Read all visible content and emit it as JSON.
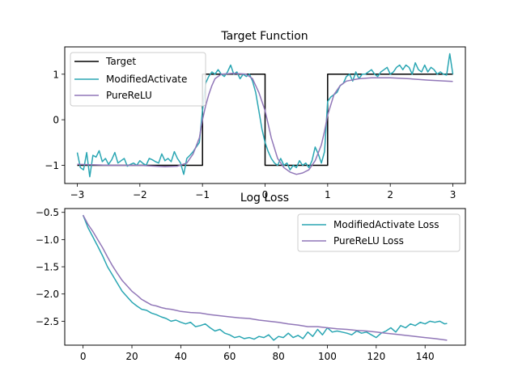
{
  "colors": {
    "target": "#000000",
    "modified": "#2aa6b3",
    "pure": "#9177b8"
  },
  "chart_data": [
    {
      "type": "line",
      "title": "Target Function",
      "xlabel": "",
      "ylabel": "",
      "xlim": [
        -3.2,
        3.2
      ],
      "ylim": [
        -1.4,
        1.6
      ],
      "xticks": [
        -3,
        -2,
        -1,
        0,
        1,
        2,
        3
      ],
      "xtick_labels": [
        "−3",
        "−2",
        "−1",
        "0",
        "1",
        "2",
        "3"
      ],
      "yticks": [
        1,
        0,
        -1
      ],
      "ytick_labels": [
        "1",
        "0",
        "−1"
      ],
      "legend_location": "upper-left",
      "series": [
        {
          "name": "Target",
          "color_key": "target",
          "x": [
            -3,
            -1,
            -1,
            0,
            0,
            1,
            1,
            3
          ],
          "y": [
            -1,
            -1,
            1,
            1,
            -1,
            -1,
            1,
            1
          ]
        },
        {
          "name": "ModifiedActivate",
          "color_key": "modified",
          "x": [
            -3.0,
            -2.95,
            -2.9,
            -2.85,
            -2.8,
            -2.75,
            -2.7,
            -2.65,
            -2.6,
            -2.55,
            -2.5,
            -2.45,
            -2.4,
            -2.35,
            -2.3,
            -2.25,
            -2.2,
            -2.15,
            -2.1,
            -2.05,
            -2.0,
            -1.95,
            -1.9,
            -1.85,
            -1.8,
            -1.75,
            -1.7,
            -1.65,
            -1.6,
            -1.55,
            -1.5,
            -1.45,
            -1.4,
            -1.35,
            -1.3,
            -1.25,
            -1.2,
            -1.15,
            -1.1,
            -1.05,
            -1.0,
            -0.95,
            -0.9,
            -0.85,
            -0.8,
            -0.75,
            -0.7,
            -0.65,
            -0.6,
            -0.55,
            -0.5,
            -0.45,
            -0.4,
            -0.35,
            -0.3,
            -0.25,
            -0.2,
            -0.15,
            -0.1,
            -0.05,
            0.0,
            0.05,
            0.1,
            0.15,
            0.2,
            0.25,
            0.3,
            0.35,
            0.4,
            0.45,
            0.5,
            0.55,
            0.6,
            0.65,
            0.7,
            0.75,
            0.8,
            0.85,
            0.9,
            0.95,
            1.0,
            1.05,
            1.1,
            1.15,
            1.2,
            1.25,
            1.3,
            1.35,
            1.4,
            1.45,
            1.5,
            1.55,
            1.6,
            1.65,
            1.7,
            1.75,
            1.8,
            1.85,
            1.9,
            1.95,
            2.0,
            2.05,
            2.1,
            2.15,
            2.2,
            2.25,
            2.3,
            2.35,
            2.4,
            2.45,
            2.5,
            2.55,
            2.6,
            2.65,
            2.7,
            2.75,
            2.8,
            2.85,
            2.9,
            2.95,
            3.0
          ],
          "y": [
            -0.72,
            -1.05,
            -1.1,
            -0.72,
            -1.25,
            -0.78,
            -0.82,
            -0.68,
            -0.92,
            -0.85,
            -0.98,
            -0.88,
            -0.72,
            -0.95,
            -0.9,
            -0.85,
            -1.02,
            -0.98,
            -0.95,
            -1.0,
            -0.9,
            -0.96,
            -1.0,
            -0.85,
            -0.88,
            -0.92,
            -0.95,
            -0.75,
            -0.9,
            -0.85,
            -0.92,
            -0.7,
            -0.85,
            -0.95,
            -1.2,
            -0.85,
            -0.78,
            -0.7,
            -0.6,
            -0.5,
            0.2,
            0.8,
            0.95,
            1.05,
            1.0,
            1.1,
            1.0,
            0.95,
            1.05,
            1.2,
            1.0,
            1.05,
            0.9,
            1.0,
            0.95,
            1.0,
            0.85,
            0.6,
            0.2,
            -0.2,
            -0.5,
            -0.7,
            -0.85,
            -0.95,
            -1.0,
            -0.85,
            -1.0,
            -0.95,
            -1.1,
            -1.0,
            -1.05,
            -0.9,
            -1.0,
            -0.95,
            -1.05,
            -0.9,
            -0.6,
            -0.75,
            -0.95,
            -0.7,
            0.4,
            0.5,
            0.55,
            0.6,
            0.75,
            0.8,
            0.95,
            1.0,
            0.85,
            1.05,
            0.9,
            1.0,
            1.0,
            1.05,
            1.1,
            1.0,
            0.95,
            1.05,
            1.1,
            1.15,
            1.0,
            1.05,
            1.15,
            1.2,
            1.1,
            1.2,
            1.15,
            1.0,
            1.25,
            1.1,
            1.05,
            1.2,
            1.05,
            1.15,
            1.1,
            1.0,
            1.05,
            1.0,
            0.98,
            1.45,
            1.0
          ]
        },
        {
          "name": "PureReLU",
          "color_key": "pure",
          "x": [
            -3.0,
            -2.5,
            -2.0,
            -1.6,
            -1.4,
            -1.25,
            -1.15,
            -1.05,
            -1.0,
            -0.95,
            -0.9,
            -0.85,
            -0.8,
            -0.7,
            -0.5,
            -0.3,
            -0.2,
            -0.1,
            0.0,
            0.05,
            0.1,
            0.2,
            0.3,
            0.4,
            0.5,
            0.6,
            0.7,
            0.8,
            0.9,
            0.95,
            1.0,
            1.1,
            1.2,
            1.3,
            1.5,
            1.7,
            2.0,
            2.3,
            2.6,
            3.0
          ],
          "y": [
            -0.98,
            -1.0,
            -1.0,
            -1.03,
            -1.02,
            -0.95,
            -0.75,
            -0.4,
            0.0,
            0.3,
            0.55,
            0.75,
            0.9,
            1.0,
            1.02,
            1.0,
            0.9,
            0.6,
            0.2,
            -0.1,
            -0.4,
            -0.85,
            -1.05,
            -1.15,
            -1.2,
            -1.17,
            -1.1,
            -0.9,
            -0.55,
            -0.25,
            0.1,
            0.55,
            0.75,
            0.85,
            0.9,
            0.92,
            0.92,
            0.9,
            0.87,
            0.84
          ]
        }
      ]
    },
    {
      "type": "line",
      "title": "Log Loss",
      "xlabel": "",
      "ylabel": "",
      "xlim": [
        -7.5,
        156.5
      ],
      "ylim": [
        -2.94,
        -0.43
      ],
      "xticks": [
        0,
        20,
        40,
        60,
        80,
        100,
        120,
        140
      ],
      "xtick_labels": [
        "0",
        "20",
        "40",
        "60",
        "80",
        "100",
        "120",
        "140"
      ],
      "yticks": [
        -0.5,
        -1.0,
        -1.5,
        -2.0,
        -2.5
      ],
      "ytick_labels": [
        "−0.5",
        "−1.0",
        "−1.5",
        "−2.0",
        "−2.5"
      ],
      "legend_location": "upper-right",
      "series": [
        {
          "name": "ModifiedActivate Loss",
          "color_key": "modified",
          "x": [
            0,
            2,
            4,
            6,
            8,
            10,
            12,
            14,
            16,
            18,
            20,
            22,
            24,
            26,
            28,
            30,
            32,
            34,
            36,
            38,
            40,
            42,
            44,
            46,
            48,
            50,
            52,
            54,
            56,
            58,
            60,
            62,
            64,
            66,
            68,
            70,
            72,
            74,
            76,
            78,
            80,
            82,
            84,
            86,
            88,
            90,
            92,
            94,
            96,
            98,
            100,
            102,
            104,
            106,
            108,
            110,
            112,
            114,
            116,
            118,
            120,
            122,
            124,
            126,
            128,
            130,
            132,
            134,
            136,
            138,
            140,
            142,
            144,
            146,
            148,
            149
          ],
          "y": [
            -0.55,
            -0.78,
            -0.95,
            -1.12,
            -1.3,
            -1.5,
            -1.65,
            -1.8,
            -1.95,
            -2.05,
            -2.15,
            -2.22,
            -2.28,
            -2.3,
            -2.35,
            -2.38,
            -2.42,
            -2.45,
            -2.5,
            -2.48,
            -2.52,
            -2.55,
            -2.52,
            -2.6,
            -2.58,
            -2.55,
            -2.62,
            -2.68,
            -2.65,
            -2.72,
            -2.75,
            -2.8,
            -2.78,
            -2.82,
            -2.8,
            -2.83,
            -2.78,
            -2.8,
            -2.75,
            -2.85,
            -2.78,
            -2.8,
            -2.72,
            -2.8,
            -2.76,
            -2.82,
            -2.7,
            -2.78,
            -2.65,
            -2.75,
            -2.62,
            -2.7,
            -2.68,
            -2.7,
            -2.72,
            -2.75,
            -2.68,
            -2.72,
            -2.7,
            -2.75,
            -2.8,
            -2.72,
            -2.68,
            -2.62,
            -2.7,
            -2.58,
            -2.62,
            -2.55,
            -2.58,
            -2.52,
            -2.55,
            -2.5,
            -2.52,
            -2.5,
            -2.55,
            -2.54
          ]
        },
        {
          "name": "PureReLU Loss",
          "color_key": "pure",
          "x": [
            0,
            2,
            4,
            6,
            8,
            10,
            12,
            14,
            16,
            18,
            20,
            22,
            24,
            26,
            28,
            30,
            32,
            34,
            36,
            38,
            40,
            44,
            48,
            52,
            56,
            60,
            64,
            68,
            72,
            76,
            80,
            84,
            88,
            92,
            96,
            100,
            104,
            108,
            112,
            116,
            120,
            124,
            128,
            132,
            136,
            140,
            144,
            149
          ],
          "y": [
            -0.55,
            -0.72,
            -0.85,
            -1.0,
            -1.15,
            -1.32,
            -1.48,
            -1.62,
            -1.75,
            -1.85,
            -1.95,
            -2.02,
            -2.1,
            -2.15,
            -2.2,
            -2.22,
            -2.25,
            -2.27,
            -2.28,
            -2.3,
            -2.32,
            -2.34,
            -2.35,
            -2.38,
            -2.4,
            -2.42,
            -2.44,
            -2.45,
            -2.48,
            -2.5,
            -2.52,
            -2.55,
            -2.57,
            -2.6,
            -2.6,
            -2.62,
            -2.64,
            -2.65,
            -2.67,
            -2.68,
            -2.7,
            -2.72,
            -2.74,
            -2.76,
            -2.78,
            -2.8,
            -2.82,
            -2.85
          ]
        }
      ]
    }
  ]
}
